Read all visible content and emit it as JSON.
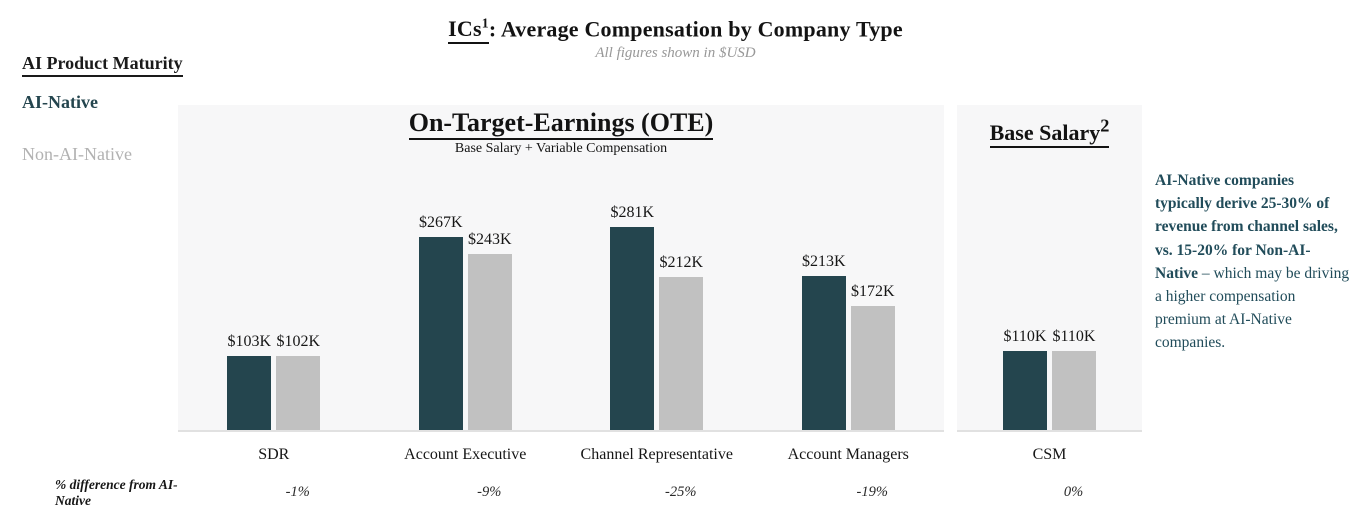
{
  "title": {
    "lead": "ICs",
    "lead_sup": "1",
    "rest": ": Average Compensation by Company Type",
    "subtitle": "All figures shown in $USD"
  },
  "legend": {
    "title": "AI Product Maturity",
    "items": [
      {
        "label": "AI-Native",
        "color": "#24454e"
      },
      {
        "label": "Non-AI-Native",
        "color": "#b2b2b2"
      }
    ]
  },
  "panels": {
    "ote": {
      "title": "On-Target-Earnings (OTE)",
      "subtitle": "Base Salary + Variable Compensation"
    },
    "base": {
      "title": "Base Salary",
      "title_sup": "2"
    }
  },
  "pct_row_label": "% difference from AI-Native",
  "note": {
    "bold": "AI-Native companies typically derive 25-30% of revenue from channel sales, vs. 15-20% for Non-AI-Native",
    "regular": " – which may be driving a higher compensation premium at AI-Native companies.",
    "color": "#214c5a"
  },
  "chart_data": {
    "type": "bar",
    "title": "ICs1: Average Compensation by Company Type",
    "subtitle": "All figures shown in $USD",
    "unit": "USD thousands",
    "grid": false,
    "legend_position": "left",
    "ylim": [
      0,
      300
    ],
    "categories": [
      "SDR",
      "Account Executive",
      "Channel Representative",
      "Account Managers",
      "CSM"
    ],
    "category_panel": [
      "ote",
      "ote",
      "ote",
      "ote",
      "base"
    ],
    "series": [
      {
        "name": "AI-Native",
        "color": "#24454e",
        "values": [
          103,
          267,
          281,
          213,
          110
        ]
      },
      {
        "name": "Non-AI-Native",
        "color": "#c1c1c1",
        "values": [
          102,
          243,
          212,
          172,
          110
        ]
      }
    ],
    "value_labels": [
      [
        "$103K",
        "$102K"
      ],
      [
        "$267K",
        "$243K"
      ],
      [
        "$281K",
        "$212K"
      ],
      [
        "$213K",
        "$172K"
      ],
      [
        "$110K",
        "$110K"
      ]
    ],
    "pct_difference_from_ai_native": [
      "-1%",
      "-9%",
      "-25%",
      "-19%",
      "0%"
    ]
  }
}
